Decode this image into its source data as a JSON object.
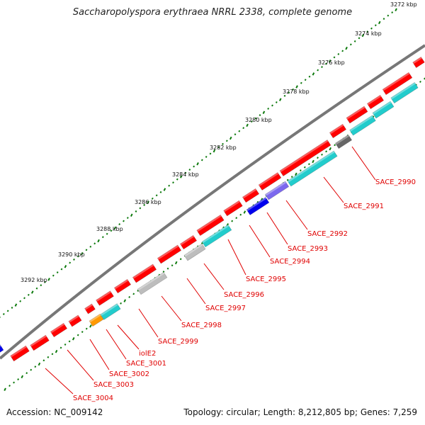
{
  "title": "Saccharopolyspora erythraea NRRL 2338, complete genome",
  "footer": {
    "accession": "Accession: NC_009142",
    "summary": "Topology: circular; Length: 8,212,805 bp; Genes: 7,259"
  },
  "colors": {
    "forward_cds": "#ff0000",
    "reverse_cds": "#22cccc",
    "gray_feature": "#bdbdbd",
    "dark_gray_feature": "#666666",
    "blue_feature": "#0000ee",
    "slate_feature": "#7b68ee",
    "orange_feature": "#ff9900",
    "backbone": "#777777",
    "label_color": "#e00000",
    "tick_color": "#0d7a0d"
  },
  "kbp_labels": [
    "3272 kbp",
    "3274 kbp",
    "3276 kbp",
    "3278 kbp",
    "3280 kbp",
    "3282 kbp",
    "3284 kbp",
    "3286 kbp",
    "3288 kbp",
    "3290 kbp",
    "3292 kbp"
  ],
  "gene_labels": [
    "SACE_2990",
    "SACE_2991",
    "SACE_2992",
    "SACE_2993",
    "SACE_2994",
    "SACE_2995",
    "SACE_2996",
    "SACE_2997",
    "SACE_2998",
    "SACE_2999",
    "iolE2",
    "SACE_3001",
    "SACE_3002",
    "SACE_3003",
    "SACE_3004"
  ]
}
